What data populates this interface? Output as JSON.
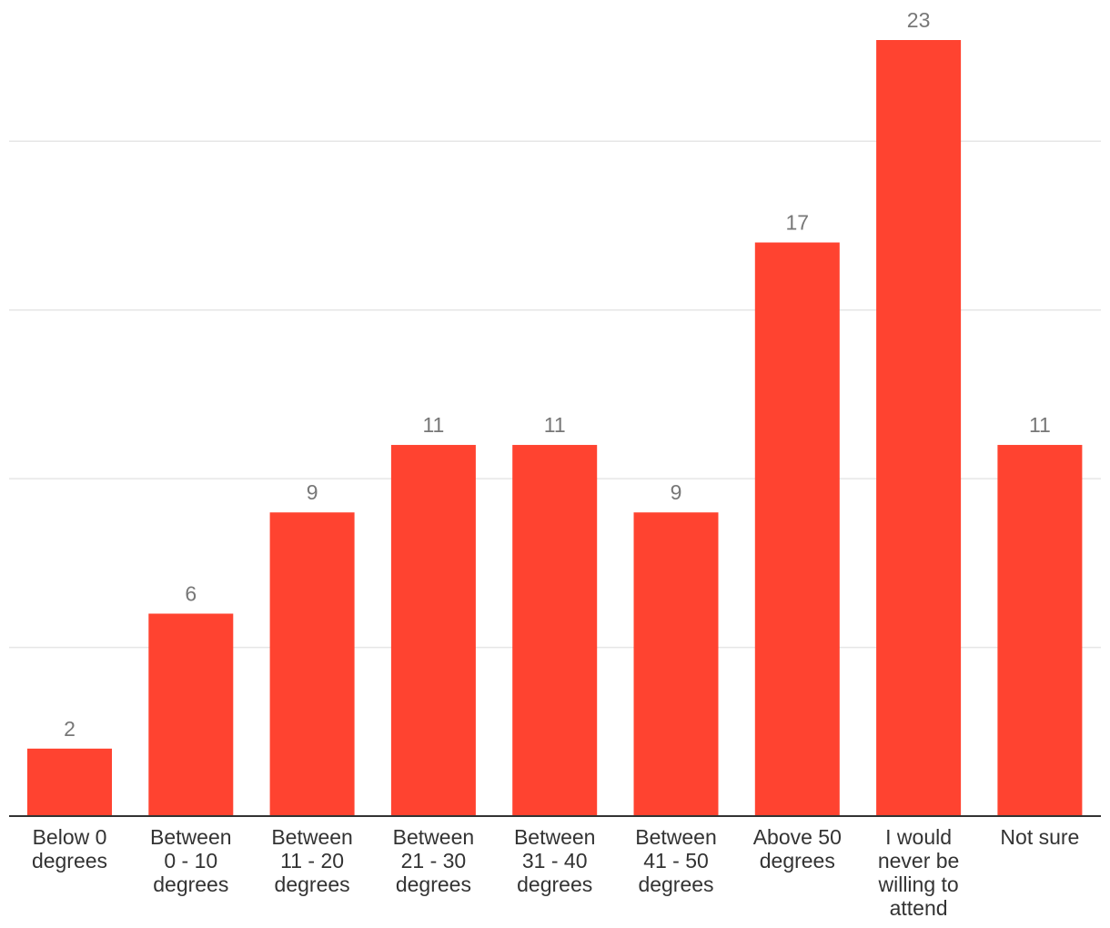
{
  "chart_data": {
    "type": "bar",
    "title": "",
    "xlabel": "",
    "ylabel": "",
    "categories": [
      [
        "Below 0",
        "degrees"
      ],
      [
        "Between",
        "0 - 10",
        "degrees"
      ],
      [
        "Between",
        "11 - 20",
        "degrees"
      ],
      [
        "Between",
        "21 - 30",
        "degrees"
      ],
      [
        "Between",
        "31 - 40",
        "degrees"
      ],
      [
        "Between",
        "41 - 50",
        "degrees"
      ],
      [
        "Above 50",
        "degrees"
      ],
      [
        "I would",
        "never be",
        "willing to",
        "attend"
      ],
      [
        "Not sure"
      ]
    ],
    "values": [
      2,
      6,
      9,
      11,
      11,
      9,
      17,
      23,
      11
    ],
    "ylim": [
      0,
      23
    ],
    "gridlines": [
      5,
      10,
      15,
      20
    ],
    "grid": true,
    "legend": "none",
    "bar_color": "#ff4330",
    "grid_color": "#e6e6e6",
    "axis_color": "#333333"
  }
}
